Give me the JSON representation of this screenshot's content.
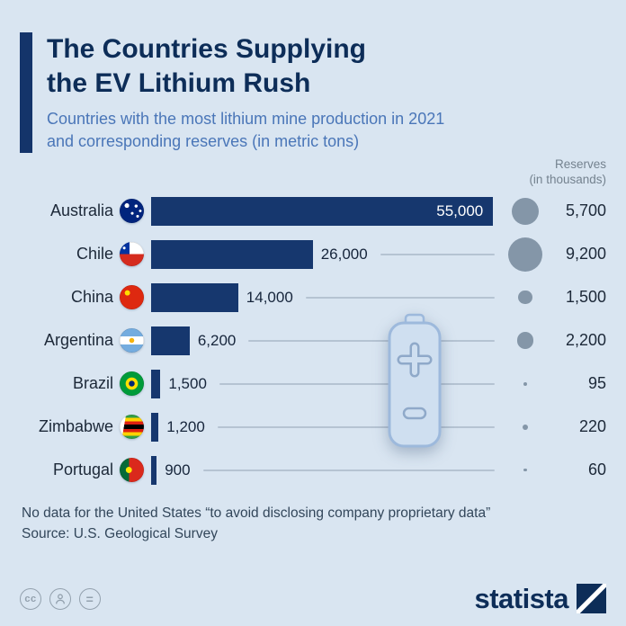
{
  "header": {
    "title_line1": "The Countries Supplying",
    "title_line2": "the EV Lithium Rush",
    "subtitle_line1": "Countries with the most lithium mine production in 2021",
    "subtitle_line2": "and corresponding reserves (in metric tons)",
    "reserves_header_line1": "Reserves",
    "reserves_header_line2": "(in thousands)"
  },
  "chart_data": {
    "type": "bar",
    "title": "The Countries Supplying the EV Lithium Rush",
    "subtitle": "Countries with the most lithium mine production in 2021 and corresponding reserves (in metric tons)",
    "categories": [
      "Australia",
      "Chile",
      "China",
      "Argentina",
      "Brazil",
      "Zimbabwe",
      "Portugal"
    ],
    "series": [
      {
        "name": "Lithium mine production 2021 (metric tons)",
        "values": [
          55000,
          26000,
          14000,
          6200,
          1500,
          1200,
          900
        ]
      },
      {
        "name": "Reserves (in thousands of metric tons)",
        "values": [
          5700,
          9200,
          1500,
          2200,
          95,
          220,
          60
        ]
      }
    ],
    "value_labels": [
      "55,000",
      "26,000",
      "14,000",
      "6,200",
      "1,500",
      "1,200",
      "900"
    ],
    "reserve_labels": [
      "5,700",
      "9,200",
      "1,500",
      "2,200",
      "95",
      "220",
      "60"
    ],
    "xlim": [
      0,
      55000
    ],
    "orientation": "horizontal",
    "grid": false,
    "colors": {
      "bar": "#16376e",
      "reserve_circle": "#8496a8",
      "background": "#d9e5f1"
    }
  },
  "rows": [
    {
      "country": "Australia",
      "flag": "australia",
      "value": 55000,
      "value_label": "55,000",
      "value_inside": true,
      "reserve": 5700,
      "reserve_label": "5,700"
    },
    {
      "country": "Chile",
      "flag": "chile",
      "value": 26000,
      "value_label": "26,000",
      "value_inside": false,
      "reserve": 9200,
      "reserve_label": "9,200"
    },
    {
      "country": "China",
      "flag": "china",
      "value": 14000,
      "value_label": "14,000",
      "value_inside": false,
      "reserve": 1500,
      "reserve_label": "1,500"
    },
    {
      "country": "Argentina",
      "flag": "argentina",
      "value": 6200,
      "value_label": "6,200",
      "value_inside": false,
      "reserve": 2200,
      "reserve_label": "2,200"
    },
    {
      "country": "Brazil",
      "flag": "brazil",
      "value": 1500,
      "value_label": "1,500",
      "value_inside": false,
      "reserve": 95,
      "reserve_label": "95"
    },
    {
      "country": "Zimbabwe",
      "flag": "zimbabwe",
      "value": 1200,
      "value_label": "1,200",
      "value_inside": false,
      "reserve": 220,
      "reserve_label": "220"
    },
    {
      "country": "Portugal",
      "flag": "portugal",
      "value": 900,
      "value_label": "900",
      "value_inside": false,
      "reserve": 60,
      "reserve_label": "60"
    }
  ],
  "footer": {
    "note": "No data for the United States “to avoid disclosing company proprietary data”",
    "source": "Source: U.S. Geological Survey"
  },
  "branding": {
    "logo_text": "statista",
    "license_cc_label": "cc",
    "license_equals_label": "="
  }
}
